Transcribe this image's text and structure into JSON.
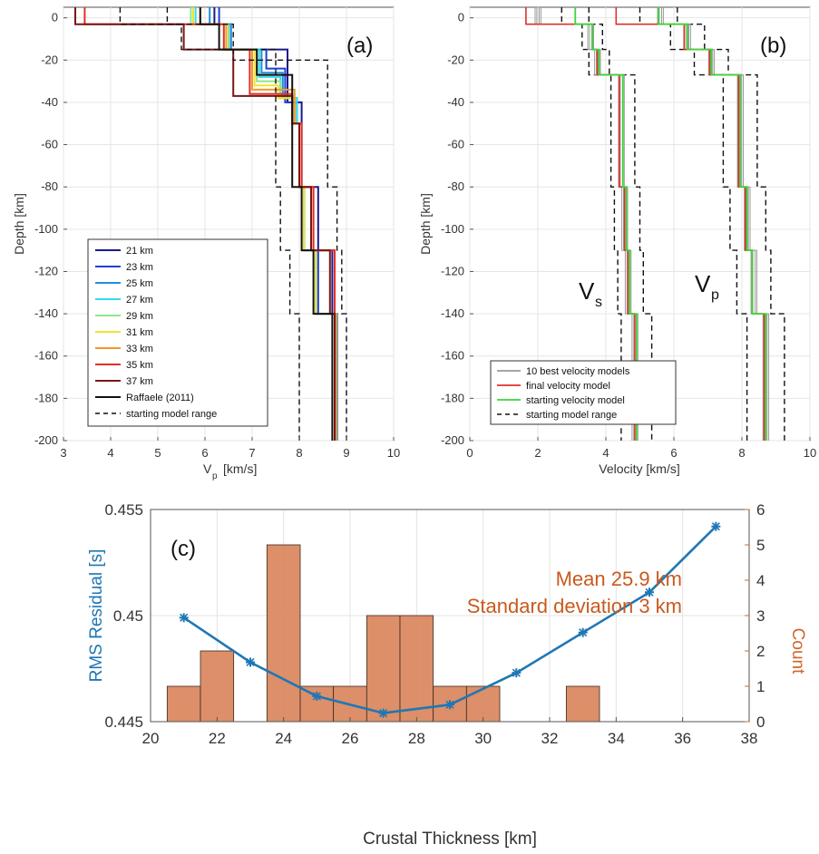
{
  "panels": {
    "a": {
      "label": "(a)",
      "xlabel_main": "V",
      "xlabel_sub": "p",
      "xlabel_unit": "[km/s]",
      "ylabel": "Depth [km]",
      "xlim": [
        3,
        10
      ],
      "ylim": [
        -200,
        5
      ],
      "xticks": [
        "3",
        "4",
        "5",
        "6",
        "7",
        "8",
        "9",
        "10"
      ],
      "yticks": [
        "0",
        "-20",
        "-40",
        "-60",
        "-80",
        "-100",
        "-120",
        "-140",
        "-160",
        "-180",
        "-200"
      ],
      "legend": [
        {
          "name": "21 km",
          "color": "#1a1a8c",
          "dash": false
        },
        {
          "name": "23 km",
          "color": "#1f3fd6",
          "dash": false
        },
        {
          "name": "25 km",
          "color": "#1f8fdc",
          "dash": false
        },
        {
          "name": "27 km",
          "color": "#33dde6",
          "dash": false
        },
        {
          "name": "29 km",
          "color": "#8fe58a",
          "dash": false
        },
        {
          "name": "31 km",
          "color": "#f2e32e",
          "dash": false
        },
        {
          "name": "33 km",
          "color": "#f09a28",
          "dash": false
        },
        {
          "name": "35 km",
          "color": "#e0302a",
          "dash": false
        },
        {
          "name": "37 km",
          "color": "#7a1616",
          "dash": false
        },
        {
          "name": "Raffaele (2011)",
          "color": "#111111",
          "dash": false
        },
        {
          "name": "starting model range",
          "color": "#111111",
          "dash": true
        }
      ]
    },
    "b": {
      "label": "(b)",
      "xlabel": "Velocity [km/s]",
      "ylabel": "Depth [km]",
      "xlim": [
        0,
        10
      ],
      "ylim": [
        -200,
        5
      ],
      "xticks": [
        "0",
        "2",
        "4",
        "6",
        "8",
        "10"
      ],
      "yticks": [
        "0",
        "-20",
        "-40",
        "-60",
        "-80",
        "-100",
        "-120",
        "-140",
        "-160",
        "-180",
        "-200"
      ],
      "vs_main": "V",
      "vs_sub": "s",
      "vp_main": "V",
      "vp_sub": "p",
      "legend": [
        {
          "name": "10 best velocity models",
          "color": "#9a9a9a",
          "dash": false
        },
        {
          "name": "final velocity model",
          "color": "#e0302a",
          "dash": false
        },
        {
          "name": "starting velocity model",
          "color": "#3ad63a",
          "dash": false
        },
        {
          "name": "starting model range",
          "color": "#111111",
          "dash": true
        }
      ]
    },
    "c": {
      "label": "(c)",
      "xlabel": "Crustal Thickness [km]",
      "ylabel_left": "RMS Residual [s]",
      "ylabel_right": "Count",
      "xticks": [
        "20",
        "22",
        "24",
        "26",
        "28",
        "30",
        "32",
        "34",
        "36",
        "38"
      ],
      "yticks_left": [
        "0.445",
        "0.45",
        "0.455"
      ],
      "yticks_right": [
        "0",
        "1",
        "2",
        "3",
        "4",
        "5",
        "6"
      ],
      "annotation_mean": "Mean 25.9 km",
      "annotation_std": "Standard deviation 3 km"
    }
  },
  "colors": {
    "rms_line": "#1f77b4",
    "hist_fill": "#d9855c",
    "count_axis": "#d2642a",
    "annotation": "#c85a1e"
  },
  "chart_data": [
    {
      "type": "line",
      "title": "",
      "xlabel": "Vp [km/s]",
      "ylabel": "Depth [km]",
      "xlim": [
        3,
        10
      ],
      "ylim": [
        -200,
        5
      ],
      "series": [
        {
          "name": "21 km",
          "depth": [
            5,
            -3,
            -3,
            -15,
            -15,
            -40,
            -40,
            -50,
            -50,
            -80,
            -80,
            -110,
            -110,
            -140,
            -140,
            -200
          ],
          "vp": [
            6.2,
            6.2,
            6.55,
            6.55,
            7.75,
            7.75,
            8.05,
            8.05,
            8.05,
            8.05,
            8.4,
            8.4,
            8.7,
            8.7,
            8.8,
            8.8
          ]
        },
        {
          "name": "23 km",
          "depth": [
            5,
            -3,
            -3,
            -15,
            -15,
            -24,
            -24,
            -40,
            -40,
            -50,
            -50,
            -80,
            -80,
            -110,
            -110,
            -140,
            -140,
            -200
          ],
          "vp": [
            6.3,
            6.3,
            6.55,
            6.55,
            7.3,
            7.3,
            7.7,
            7.7,
            7.95,
            7.95,
            8.0,
            8.0,
            8.1,
            8.1,
            8.4,
            8.4,
            8.8,
            8.8
          ]
        },
        {
          "name": "25 km",
          "depth": [
            5,
            -3,
            -3,
            -15,
            -15,
            -26,
            -26,
            -38,
            -38,
            -50,
            -50,
            -80,
            -80,
            -110,
            -110,
            -140,
            -140,
            -200
          ],
          "vp": [
            6.1,
            6.1,
            6.55,
            6.55,
            7.2,
            7.2,
            7.65,
            7.65,
            7.95,
            7.95,
            8.0,
            8.0,
            8.1,
            8.1,
            8.35,
            8.35,
            8.8,
            8.8
          ]
        },
        {
          "name": "27 km",
          "depth": [
            5,
            -3,
            -3,
            -15,
            -15,
            -28,
            -28,
            -38,
            -38,
            -50,
            -50,
            -80,
            -80,
            -110,
            -110,
            -140,
            -140,
            -200
          ],
          "vp": [
            5.8,
            5.8,
            6.5,
            6.5,
            7.15,
            7.15,
            7.6,
            7.6,
            7.95,
            7.95,
            8.0,
            8.0,
            8.1,
            8.1,
            8.35,
            8.35,
            8.78,
            8.78
          ]
        },
        {
          "name": "29 km",
          "depth": [
            5,
            -3,
            -3,
            -15,
            -15,
            -30,
            -30,
            -38,
            -38,
            -50,
            -50,
            -80,
            -80,
            -110,
            -110,
            -140,
            -140,
            -200
          ],
          "vp": [
            5.7,
            5.7,
            6.5,
            6.5,
            7.1,
            7.1,
            7.6,
            7.6,
            7.9,
            7.9,
            8.0,
            8.0,
            8.1,
            8.1,
            8.35,
            8.35,
            8.78,
            8.78
          ]
        },
        {
          "name": "31 km",
          "depth": [
            5,
            -3,
            -3,
            -15,
            -15,
            -32,
            -32,
            -38,
            -38,
            -50,
            -50,
            -80,
            -80,
            -110,
            -110,
            -140,
            -140,
            -200
          ],
          "vp": [
            5.75,
            5.75,
            6.45,
            6.45,
            7.05,
            7.05,
            7.55,
            7.55,
            7.9,
            7.9,
            8.0,
            8.0,
            8.1,
            8.1,
            8.35,
            8.35,
            8.75,
            8.75
          ]
        },
        {
          "name": "33 km",
          "depth": [
            5,
            -3,
            -3,
            -15,
            -15,
            -34,
            -34,
            -50,
            -50,
            -80,
            -80,
            -110,
            -110,
            -140,
            -140,
            -200
          ],
          "vp": [
            5.9,
            5.9,
            6.45,
            6.45,
            7.0,
            7.0,
            7.9,
            7.9,
            8.05,
            8.05,
            8.3,
            8.3,
            8.75,
            8.75,
            8.78,
            8.78
          ]
        },
        {
          "name": "35 km",
          "depth": [
            5,
            -3,
            -3,
            -15,
            -15,
            -36,
            -36,
            -50,
            -50,
            -80,
            -80,
            -110,
            -110,
            -140,
            -140,
            -200
          ],
          "vp": [
            3.45,
            3.45,
            6.4,
            6.4,
            6.95,
            6.95,
            7.85,
            7.85,
            8.05,
            8.05,
            8.3,
            8.3,
            8.75,
            8.75,
            8.75,
            8.75
          ]
        },
        {
          "name": "37 km",
          "depth": [
            5,
            -3,
            -3,
            -15,
            -15,
            -37,
            -37,
            -50,
            -50,
            -80,
            -80,
            -110,
            -110,
            -140,
            -140,
            -200
          ],
          "vp": [
            3.25,
            3.25,
            5.55,
            5.55,
            6.6,
            6.6,
            7.85,
            7.85,
            8.0,
            8.0,
            8.25,
            8.25,
            8.65,
            8.65,
            8.75,
            8.75
          ]
        },
        {
          "name": "Raffaele (2011)",
          "depth": [
            5,
            -3,
            -3,
            -15,
            -15,
            -27,
            -27,
            -80,
            -80,
            -110,
            -110,
            -140,
            -140,
            -200
          ],
          "vp": [
            5.9,
            5.9,
            6.3,
            6.3,
            7.1,
            7.1,
            7.85,
            7.85,
            8.05,
            8.05,
            8.3,
            8.3,
            8.7,
            8.7
          ]
        },
        {
          "name": "starting model range",
          "depth": [
            5,
            -3,
            -3,
            -15,
            -15,
            -20,
            -20,
            -36,
            -36,
            -80,
            -80,
            -110,
            -110,
            -140,
            -140,
            -200
          ],
          "vp": [
            4.2,
            4.2,
            5.5,
            5.5,
            6.6,
            6.6,
            7.5,
            7.5,
            7.5,
            7.5,
            7.6,
            7.6,
            7.8,
            7.8,
            8.0,
            8.0
          ]
        },
        {
          "name": "starting model range",
          "depth": [
            5,
            -3,
            -3,
            -15,
            -15,
            -20,
            -20,
            -36,
            -36,
            -80,
            -80,
            -110,
            -110,
            -140,
            -140,
            -200
          ],
          "vp": [
            5.2,
            5.2,
            6.6,
            6.6,
            7.5,
            7.5,
            8.6,
            8.6,
            8.6,
            8.6,
            8.8,
            8.8,
            8.9,
            8.9,
            9.0,
            9.0
          ]
        }
      ]
    },
    {
      "type": "line",
      "title": "",
      "xlabel": "Velocity [km/s]",
      "ylabel": "Depth [km]",
      "xlim": [
        0,
        10
      ],
      "ylim": [
        -200,
        5
      ],
      "series": [
        {
          "name": "10 best velocity models",
          "depth": [
            5,
            -3,
            -3,
            -15,
            -15,
            -27,
            -27,
            -80,
            -80,
            -110,
            -110,
            -140,
            -140,
            -200
          ],
          "vs": [
            2.0,
            2.0,
            3.55,
            3.55,
            3.75,
            3.75,
            4.45,
            4.45,
            4.55,
            4.55,
            4.65,
            4.65,
            4.85,
            4.85
          ],
          "vp": [
            5.6,
            5.6,
            6.4,
            6.4,
            7.1,
            7.1,
            7.95,
            7.95,
            8.15,
            8.15,
            8.35,
            8.35,
            8.7,
            8.7
          ]
        },
        {
          "name": "final velocity model",
          "depth": [
            5,
            -3,
            -3,
            -15,
            -15,
            -27,
            -27,
            -80,
            -80,
            -110,
            -110,
            -140,
            -140,
            -200
          ],
          "vs": [
            1.65,
            1.65,
            3.6,
            3.6,
            3.75,
            3.75,
            4.4,
            4.4,
            4.55,
            4.55,
            4.65,
            4.65,
            4.85,
            4.85
          ],
          "vp": [
            4.3,
            4.3,
            6.3,
            6.3,
            7.05,
            7.05,
            7.9,
            7.9,
            8.1,
            8.1,
            8.3,
            8.3,
            8.65,
            8.65
          ]
        },
        {
          "name": "starting velocity model",
          "depth": [
            5,
            -3,
            -3,
            -15,
            -15,
            -27,
            -27,
            -80,
            -80,
            -110,
            -110,
            -140,
            -140,
            -200
          ],
          "vs": [
            3.1,
            3.1,
            3.6,
            3.6,
            3.8,
            3.8,
            4.5,
            4.5,
            4.6,
            4.6,
            4.7,
            4.7,
            4.9,
            4.9
          ],
          "vp": [
            5.55,
            5.55,
            6.4,
            6.4,
            7.1,
            7.1,
            7.95,
            7.95,
            8.15,
            8.15,
            8.3,
            8.3,
            8.7,
            8.7
          ]
        },
        {
          "name": "starting model range",
          "depth": [
            5,
            -3,
            -3,
            -15,
            -15,
            -27,
            -27,
            -80,
            -80,
            -110,
            -110,
            -140,
            -140,
            -200
          ],
          "vs_min": [
            2.7,
            2.7,
            3.3,
            3.3,
            3.5,
            3.5,
            4.15,
            4.15,
            4.25,
            4.25,
            4.35,
            4.35,
            4.45,
            4.45
          ],
          "vs_max": [
            3.5,
            3.5,
            3.9,
            3.9,
            4.1,
            4.1,
            4.85,
            4.85,
            5.0,
            5.0,
            5.1,
            5.1,
            5.35,
            5.35
          ],
          "vp_min": [
            5.0,
            5.0,
            5.9,
            5.9,
            6.6,
            6.6,
            7.45,
            7.45,
            7.65,
            7.65,
            7.85,
            7.85,
            8.15,
            8.15
          ],
          "vp_max": [
            6.1,
            6.1,
            6.9,
            6.9,
            7.6,
            7.6,
            8.45,
            8.45,
            8.7,
            8.7,
            8.85,
            8.85,
            9.25,
            9.25
          ]
        }
      ]
    },
    {
      "type": "bar",
      "title": "",
      "xlabel": "Crustal Thickness [km]",
      "ylabel": "Count",
      "xlim": [
        20,
        38
      ],
      "ylim": [
        0,
        6
      ],
      "bins": [
        {
          "x0": 20.5,
          "x1": 21.5,
          "count": 1
        },
        {
          "x0": 21.5,
          "x1": 22.5,
          "count": 2
        },
        {
          "x0": 23.5,
          "x1": 24.5,
          "count": 5
        },
        {
          "x0": 24.5,
          "x1": 25.5,
          "count": 1
        },
        {
          "x0": 25.5,
          "x1": 26.5,
          "count": 1
        },
        {
          "x0": 26.5,
          "x1": 27.5,
          "count": 3
        },
        {
          "x0": 27.5,
          "x1": 28.5,
          "count": 3
        },
        {
          "x0": 28.5,
          "x1": 29.5,
          "count": 1
        },
        {
          "x0": 29.5,
          "x1": 30.5,
          "count": 1
        },
        {
          "x0": 32.5,
          "x1": 33.5,
          "count": 1
        }
      ]
    },
    {
      "type": "line",
      "title": "",
      "xlabel": "Crustal Thickness [km]",
      "ylabel": "RMS Residual [s]",
      "xlim": [
        20,
        38
      ],
      "ylim": [
        0.445,
        0.455
      ],
      "x": [
        21,
        23,
        25,
        27,
        29,
        31,
        33,
        35,
        37
      ],
      "values": [
        0.4499,
        0.4478,
        0.4462,
        0.4454,
        0.4458,
        0.4473,
        0.4492,
        0.4511,
        0.4542
      ]
    }
  ]
}
